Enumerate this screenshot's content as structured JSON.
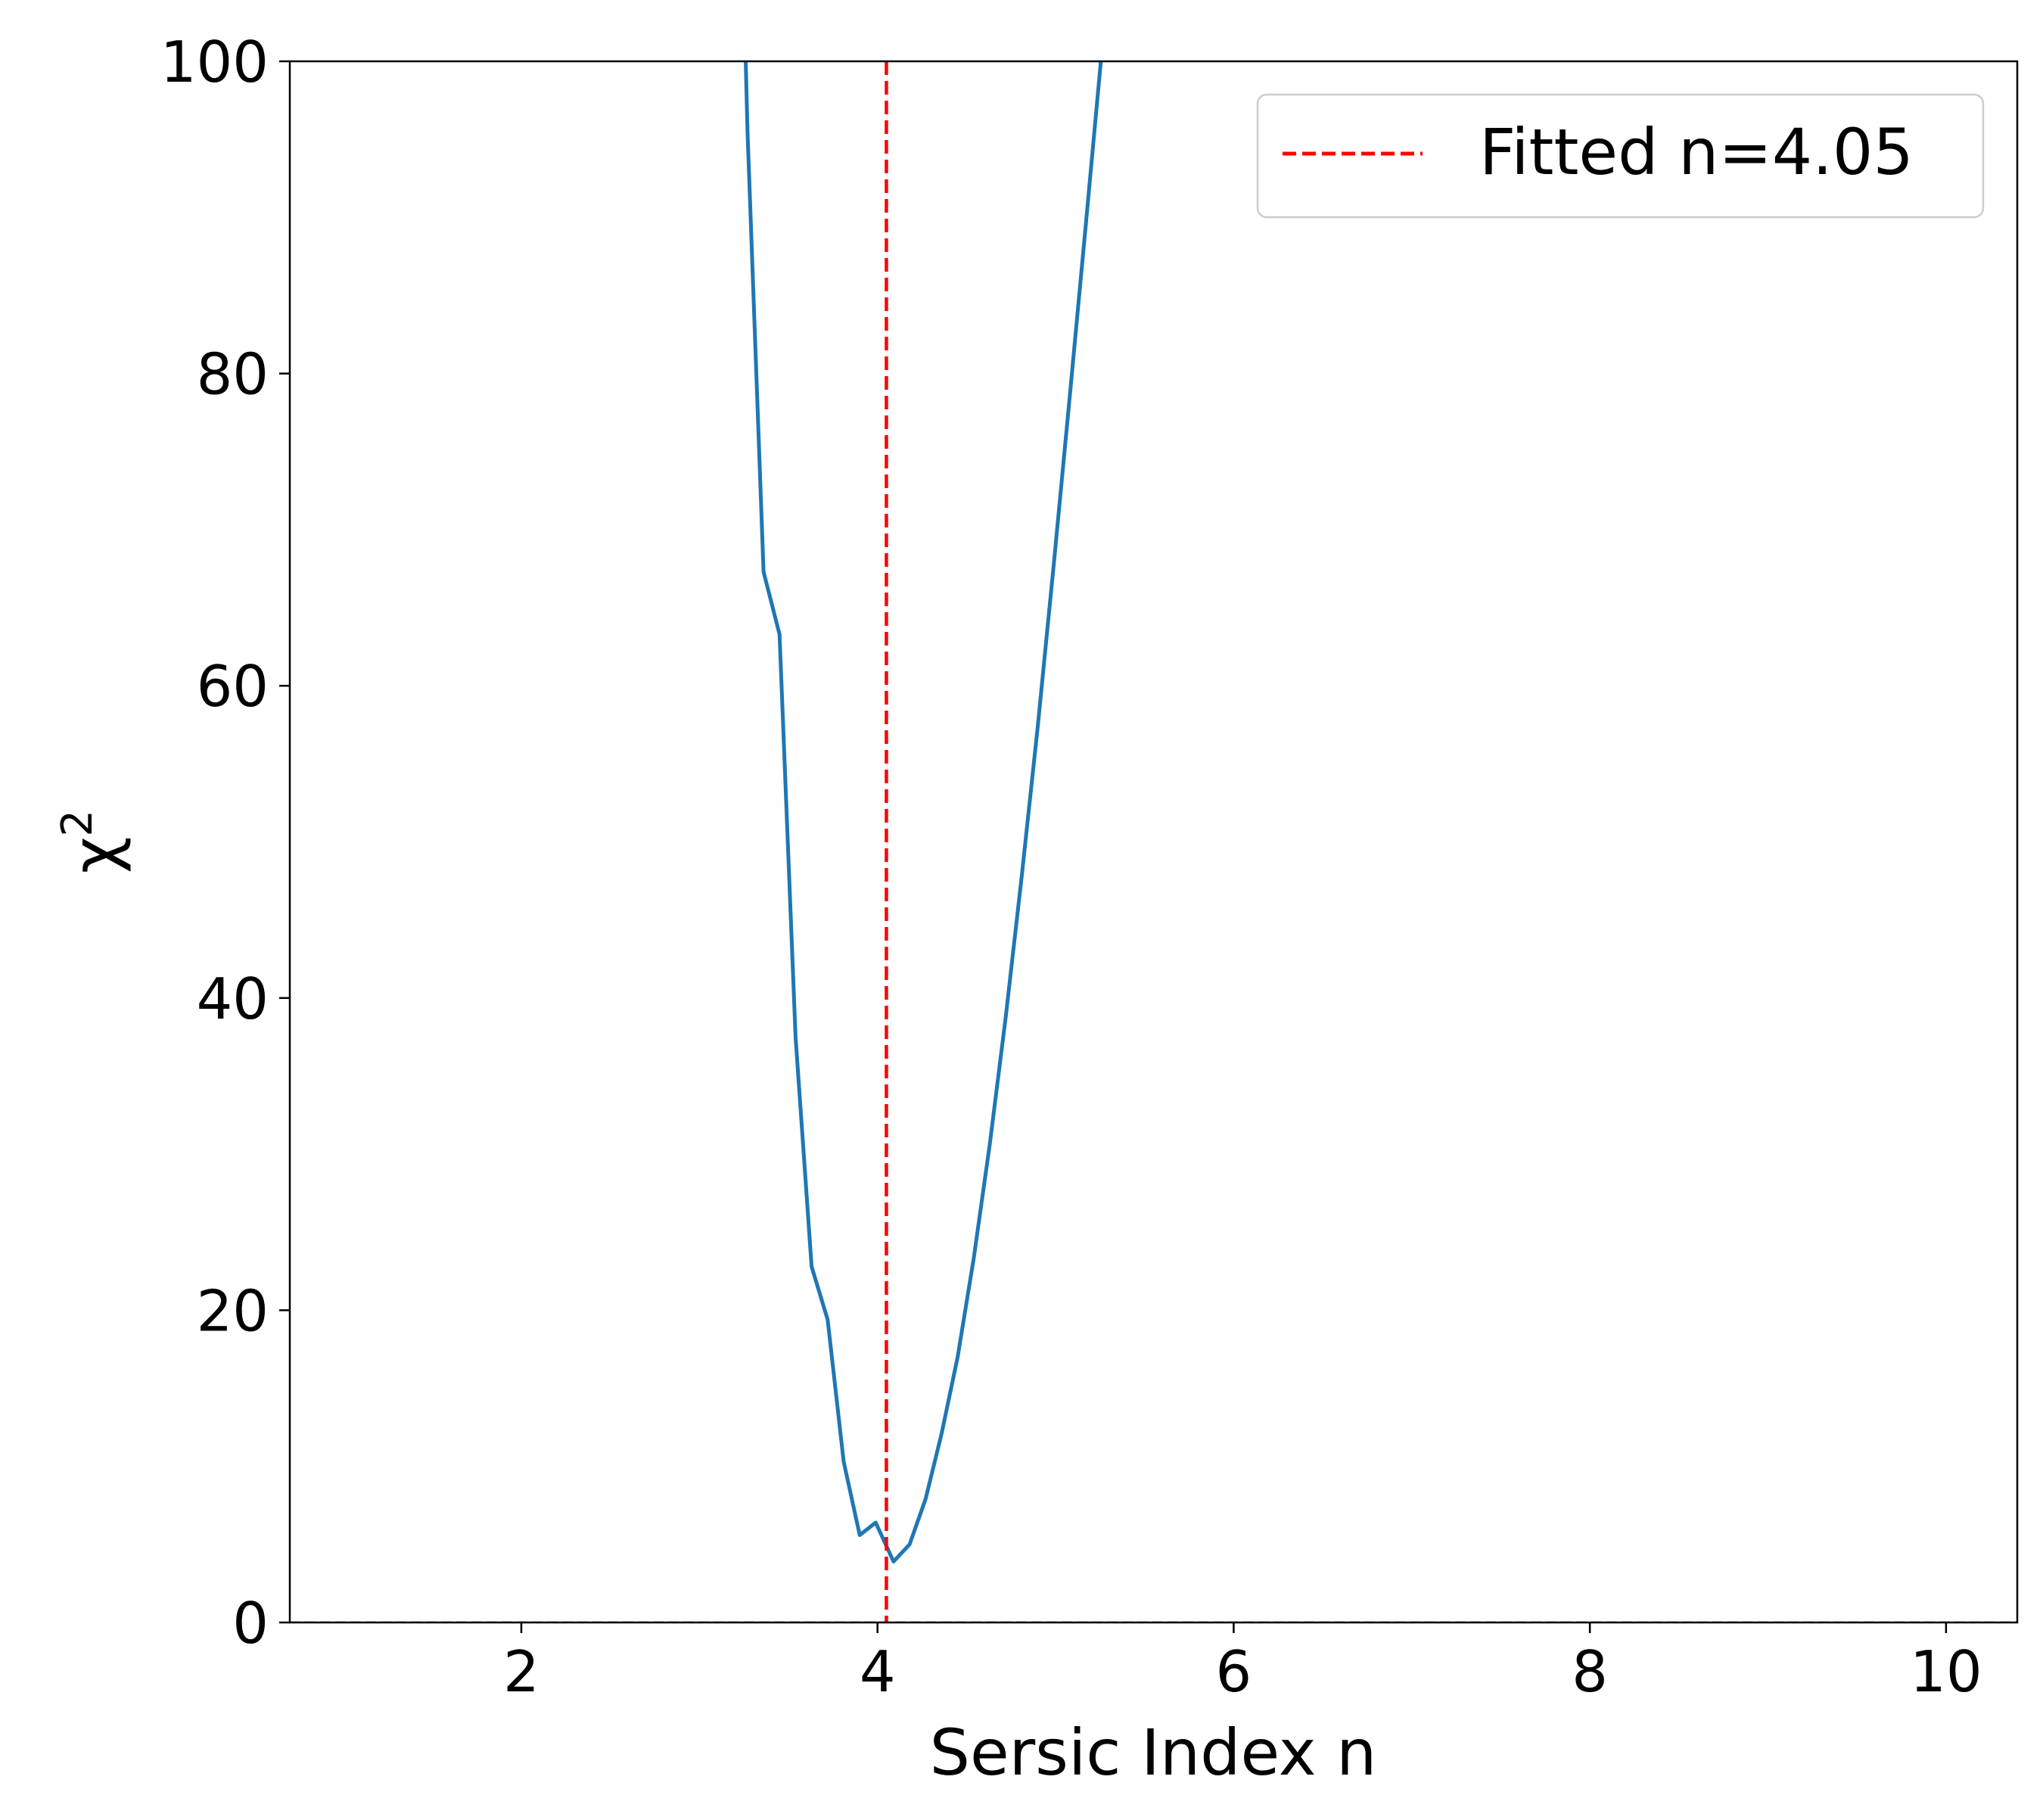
{
  "chart_data": {
    "type": "line",
    "xlabel": "Sersic Index n",
    "ylabel": "χ",
    "ylabel_superscript": "2",
    "xlim": [
      0.7,
      10.4
    ],
    "ylim": [
      0,
      100
    ],
    "x_ticks": [
      2,
      4,
      6,
      8,
      10
    ],
    "y_ticks": [
      0,
      20,
      40,
      60,
      80,
      100
    ],
    "grid": false,
    "legend_position": "top-right",
    "baseline": {
      "y": 0,
      "style": "dashed",
      "color": "#000000"
    },
    "series": [
      {
        "color": "#1f77b4",
        "x": [
          3.17,
          3.27,
          3.36,
          3.45,
          3.54,
          3.63,
          3.72,
          3.81,
          3.9,
          3.99,
          4.09,
          4.18,
          4.27,
          4.36,
          4.45,
          4.54,
          4.63,
          4.72,
          4.81,
          4.9,
          4.99,
          5.08,
          5.17,
          5.26,
          5.35
        ],
        "y": [
          140,
          95.5,
          67.3,
          63.3,
          37.5,
          22.8,
          19.4,
          10.3,
          5.6,
          6.4,
          3.9,
          5.0,
          7.9,
          12.1,
          17.0,
          23.3,
          30.6,
          38.8,
          47.8,
          57.4,
          67.8,
          78.6,
          89.6,
          100.7,
          112
        ]
      }
    ],
    "vline": {
      "x": 4.05,
      "label": "Fitted n=4.05",
      "color": "#ff0000",
      "style": "dashed"
    }
  }
}
